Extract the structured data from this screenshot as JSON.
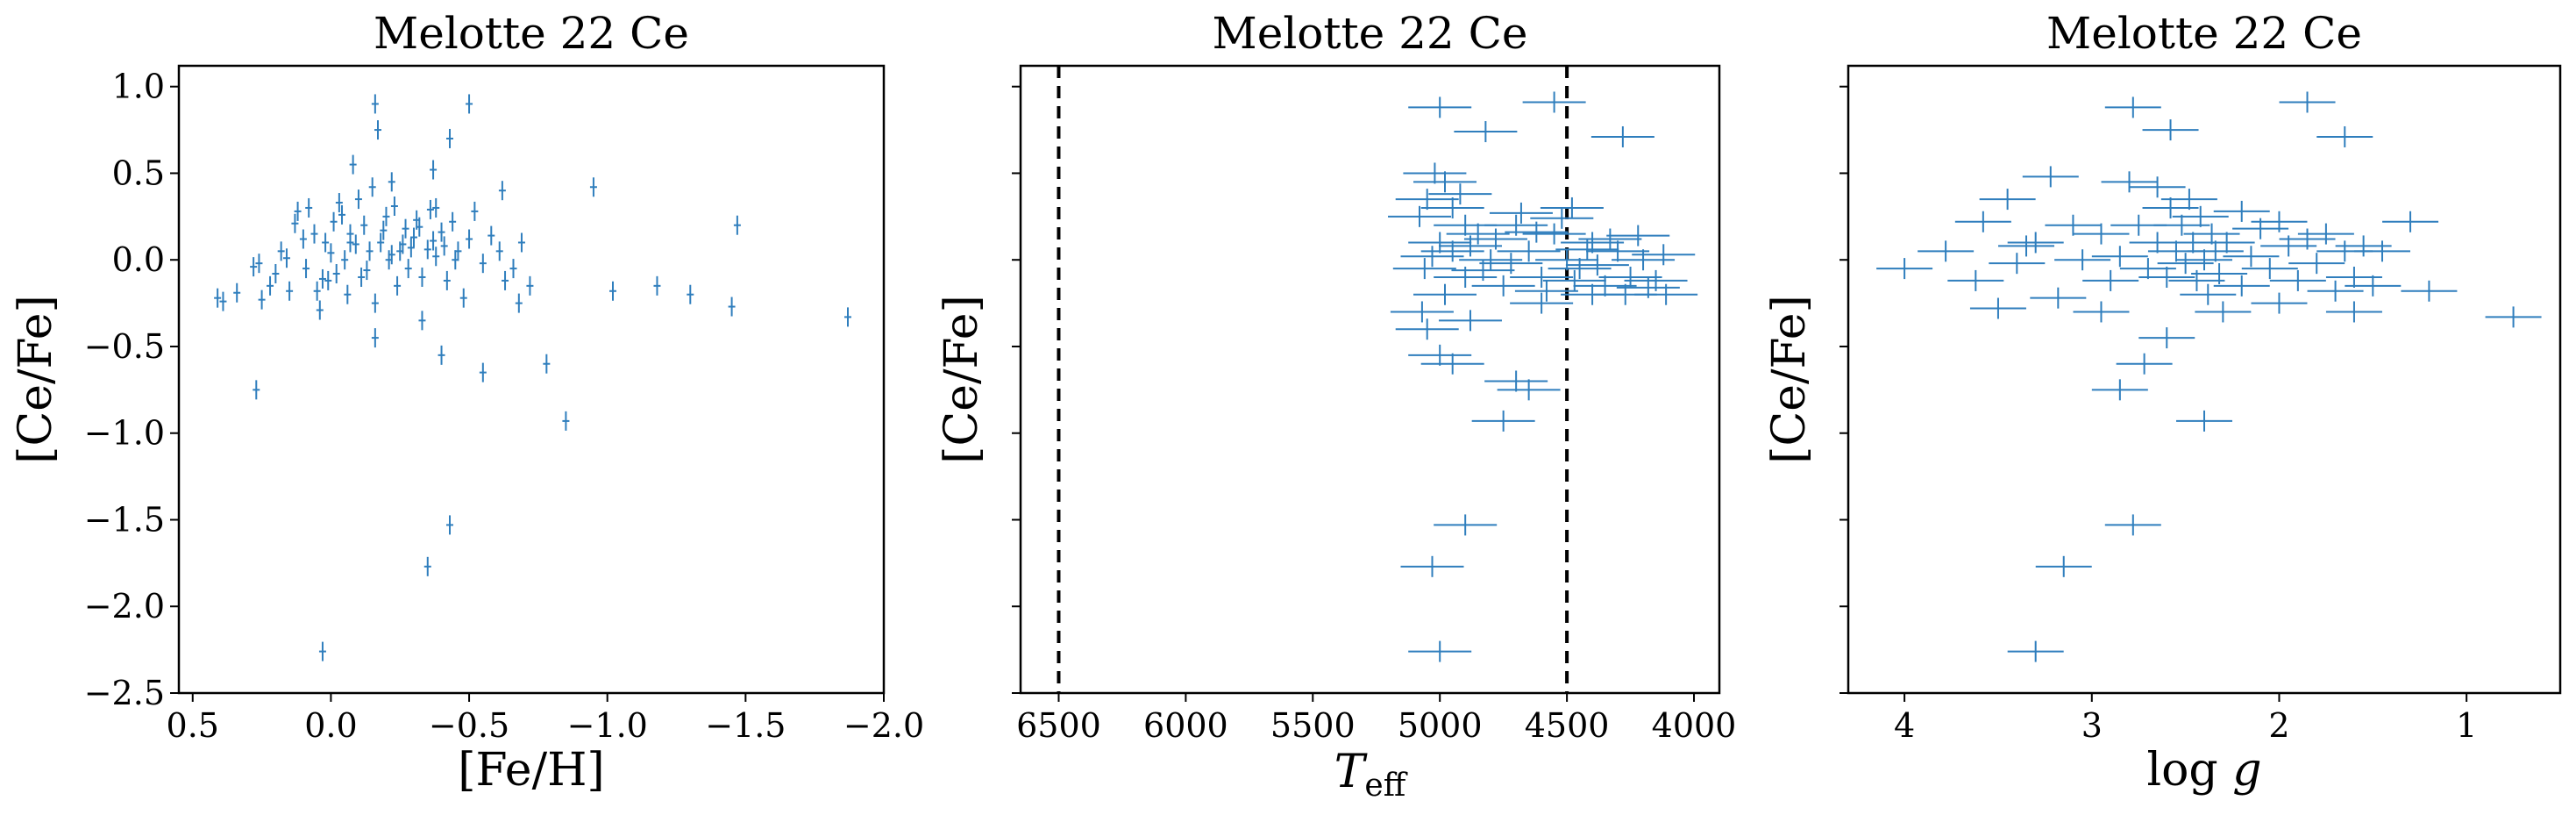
{
  "chart_data": [
    {
      "type": "scatter",
      "title": "Melotte 22 Ce",
      "xlabel": "[Fe/H]",
      "ylabel": "[Ce/Fe]",
      "xlim": [
        0.55,
        -2.0
      ],
      "ylim": [
        -2.5,
        1.12
      ],
      "xticks": [
        0.5,
        0.0,
        -0.5,
        -1.0,
        -1.5,
        -2.0
      ],
      "xtick_labels": [
        "0.5",
        "0.0",
        "−0.5",
        "−1.0",
        "−1.5",
        "−2.0"
      ],
      "yticks": [
        1.0,
        0.5,
        0.0,
        -0.5,
        -1.0,
        -1.5,
        -2.0,
        -2.5
      ],
      "ytick_labels": [
        "1.0",
        "0.5",
        "0.0",
        "−0.5",
        "−1.0",
        "−1.5",
        "−2.0",
        "−2.5"
      ],
      "grid": false,
      "marker": "errorbar",
      "points": [
        [
          0.41,
          -0.22
        ],
        [
          0.39,
          -0.24
        ],
        [
          0.34,
          -0.19
        ],
        [
          0.28,
          -0.04
        ],
        [
          0.26,
          -0.02
        ],
        [
          0.25,
          -0.23
        ],
        [
          0.22,
          -0.15
        ],
        [
          0.2,
          -0.08
        ],
        [
          0.18,
          0.05
        ],
        [
          0.16,
          0.01
        ],
        [
          0.15,
          -0.18
        ],
        [
          0.13,
          0.21
        ],
        [
          0.12,
          0.28
        ],
        [
          0.1,
          0.12
        ],
        [
          0.09,
          -0.05
        ],
        [
          0.08,
          0.3
        ],
        [
          0.06,
          0.15
        ],
        [
          0.05,
          -0.18
        ],
        [
          0.04,
          -0.29
        ],
        [
          0.02,
          0.1
        ],
        [
          0.01,
          -0.12
        ],
        [
          0.0,
          0.04
        ],
        [
          -0.01,
          0.22
        ],
        [
          -0.02,
          -0.08
        ],
        [
          -0.03,
          0.33
        ],
        [
          -0.05,
          0.0
        ],
        [
          -0.06,
          -0.2
        ],
        [
          -0.07,
          0.15
        ],
        [
          -0.09,
          0.09
        ],
        [
          -0.1,
          0.35
        ],
        [
          -0.11,
          -0.1
        ],
        [
          -0.12,
          0.2
        ],
        [
          -0.14,
          0.05
        ],
        [
          -0.15,
          0.42
        ],
        [
          -0.16,
          -0.25
        ],
        [
          -0.18,
          0.1
        ],
        [
          -0.2,
          0.25
        ],
        [
          -0.21,
          0.0
        ],
        [
          -0.23,
          0.31
        ],
        [
          -0.24,
          -0.15
        ],
        [
          -0.25,
          0.05
        ],
        [
          -0.27,
          0.18
        ],
        [
          -0.28,
          -0.05
        ],
        [
          -0.3,
          0.13
        ],
        [
          -0.31,
          0.23
        ],
        [
          -0.33,
          -0.1
        ],
        [
          -0.35,
          0.06
        ],
        [
          -0.36,
          0.29
        ],
        [
          -0.38,
          0.02
        ],
        [
          -0.4,
          0.16
        ],
        [
          -0.42,
          -0.12
        ],
        [
          -0.44,
          0.22
        ],
        [
          -0.46,
          0.05
        ],
        [
          -0.48,
          -0.22
        ],
        [
          -0.5,
          0.12
        ],
        [
          -0.52,
          0.28
        ],
        [
          -0.55,
          -0.02
        ],
        [
          -0.58,
          0.14
        ],
        [
          -0.61,
          0.05
        ],
        [
          -0.63,
          -0.12
        ],
        [
          -0.66,
          -0.05
        ],
        [
          -0.69,
          0.1
        ],
        [
          -0.07,
          0.1
        ],
        [
          -0.13,
          -0.06
        ],
        [
          -0.19,
          0.17
        ],
        [
          -0.26,
          0.09
        ],
        [
          -0.32,
          0.19
        ],
        [
          -0.37,
          0.11
        ],
        [
          -0.41,
          0.08
        ],
        [
          -0.45,
          0.0
        ],
        [
          0.03,
          -0.11
        ],
        [
          -0.04,
          0.26
        ],
        [
          -0.22,
          0.03
        ],
        [
          -0.29,
          0.07
        ],
        [
          -0.16,
          0.9
        ],
        [
          -0.17,
          0.75
        ],
        [
          -0.08,
          0.55
        ],
        [
          -0.22,
          0.45
        ],
        [
          -0.37,
          0.52
        ],
        [
          -0.43,
          0.7
        ],
        [
          -0.5,
          0.9
        ],
        [
          -0.62,
          0.4
        ],
        [
          -0.38,
          0.3
        ],
        [
          -0.16,
          -0.45
        ],
        [
          -0.33,
          -0.35
        ],
        [
          -0.4,
          -0.55
        ],
        [
          -0.55,
          -0.65
        ],
        [
          -0.78,
          -0.6
        ],
        [
          -0.85,
          -0.93
        ],
        [
          -0.95,
          0.42
        ],
        [
          -1.02,
          -0.18
        ],
        [
          -1.18,
          -0.15
        ],
        [
          -1.3,
          -0.2
        ],
        [
          -1.45,
          -0.27
        ],
        [
          -1.47,
          0.2
        ],
        [
          -1.87,
          -0.33
        ],
        [
          0.27,
          -0.75
        ],
        [
          -0.35,
          -1.77
        ],
        [
          -0.43,
          -1.53
        ],
        [
          0.03,
          -2.26
        ],
        [
          -0.72,
          -0.15
        ],
        [
          -0.68,
          -0.25
        ]
      ]
    },
    {
      "type": "scatter",
      "title": "Melotte 22 Ce",
      "xlabel": "T_eff",
      "ylabel": "[Ce/Fe]",
      "xlim": [
        6650,
        3900
      ],
      "ylim": [
        -2.5,
        1.12
      ],
      "xticks": [
        6500,
        6000,
        5500,
        5000,
        4500,
        4000
      ],
      "xtick_labels": [
        "6500",
        "6000",
        "5500",
        "5000",
        "4500",
        "4000"
      ],
      "yticks": [
        1.0,
        0.5,
        0.0,
        -0.5,
        -1.0,
        -1.5,
        -2.0,
        -2.5
      ],
      "ytick_labels": [],
      "vlines": [
        6500,
        4500
      ],
      "grid": false,
      "marker": "errorbar",
      "points": [
        [
          5000,
          0.88
        ],
        [
          4820,
          0.74
        ],
        [
          4550,
          0.91
        ],
        [
          4280,
          0.71
        ],
        [
          5020,
          0.5
        ],
        [
          4980,
          0.45
        ],
        [
          5050,
          0.35
        ],
        [
          4950,
          0.3
        ],
        [
          5080,
          0.25
        ],
        [
          4900,
          0.2
        ],
        [
          4850,
          0.15
        ],
        [
          5000,
          0.1
        ],
        [
          4950,
          0.05
        ],
        [
          4800,
          0.0
        ],
        [
          5060,
          -0.05
        ],
        [
          4900,
          -0.1
        ],
        [
          4750,
          -0.15
        ],
        [
          4700,
          0.2
        ],
        [
          4650,
          0.05
        ],
        [
          4600,
          -0.1
        ],
        [
          4550,
          0.15
        ],
        [
          4500,
          0.0
        ],
        [
          4450,
          -0.05
        ],
        [
          4400,
          0.1
        ],
        [
          4350,
          -0.15
        ],
        [
          4300,
          0.05
        ],
        [
          4250,
          -0.1
        ],
        [
          4200,
          0.0
        ],
        [
          4150,
          -0.12
        ],
        [
          4120,
          0.03
        ],
        [
          5030,
          0.02
        ],
        [
          4980,
          -0.2
        ],
        [
          5070,
          -0.3
        ],
        [
          4920,
          0.38
        ],
        [
          4880,
          0.08
        ],
        [
          4830,
          -0.06
        ],
        [
          4780,
          0.12
        ],
        [
          4720,
          -0.02
        ],
        [
          4680,
          0.27
        ],
        [
          4620,
          0.16
        ],
        [
          4580,
          -0.18
        ],
        [
          4520,
          0.24
        ],
        [
          4470,
          -0.12
        ],
        [
          4420,
          0.06
        ],
        [
          4380,
          -0.03
        ],
        [
          4330,
          0.12
        ],
        [
          4270,
          -0.2
        ],
        [
          4220,
          0.14
        ],
        [
          4180,
          -0.16
        ],
        [
          4110,
          -0.2
        ],
        [
          5050,
          -0.4
        ],
        [
          5000,
          -0.55
        ],
        [
          4950,
          -0.6
        ],
        [
          4880,
          -0.35
        ],
        [
          4700,
          -0.7
        ],
        [
          4650,
          -0.75
        ],
        [
          4750,
          -0.93
        ],
        [
          4900,
          -1.53
        ],
        [
          5030,
          -1.77
        ],
        [
          5000,
          -2.26
        ],
        [
          4600,
          -0.25
        ],
        [
          4480,
          0.3
        ],
        [
          4400,
          -0.2
        ]
      ]
    },
    {
      "type": "scatter",
      "title": "Melotte 22 Ce",
      "xlabel": "log g",
      "ylabel": "[Ce/Fe]",
      "xlim": [
        4.3,
        0.5
      ],
      "ylim": [
        -2.5,
        1.12
      ],
      "xticks": [
        4,
        3,
        2,
        1
      ],
      "xtick_labels": [
        "4",
        "3",
        "2",
        "1"
      ],
      "yticks": [
        1.0,
        0.5,
        0.0,
        -0.5,
        -1.0,
        -1.5,
        -2.0,
        -2.5
      ],
      "ytick_labels": [],
      "grid": false,
      "marker": "errorbar",
      "points": [
        [
          4.0,
          -0.05
        ],
        [
          3.78,
          0.05
        ],
        [
          3.62,
          -0.12
        ],
        [
          3.58,
          0.22
        ],
        [
          3.45,
          0.35
        ],
        [
          3.4,
          -0.02
        ],
        [
          3.35,
          0.08
        ],
        [
          3.22,
          0.48
        ],
        [
          3.18,
          -0.22
        ],
        [
          3.1,
          0.2
        ],
        [
          3.05,
          0.0
        ],
        [
          2.95,
          0.15
        ],
        [
          2.9,
          -0.12
        ],
        [
          2.85,
          0.02
        ],
        [
          2.8,
          0.45
        ],
        [
          2.75,
          0.2
        ],
        [
          2.7,
          -0.05
        ],
        [
          2.65,
          0.1
        ],
        [
          2.6,
          -0.1
        ],
        [
          2.58,
          0.3
        ],
        [
          2.55,
          0.05
        ],
        [
          2.52,
          0.2
        ],
        [
          2.5,
          -0.02
        ],
        [
          2.48,
          0.35
        ],
        [
          2.46,
          0.1
        ],
        [
          2.44,
          -0.12
        ],
        [
          2.42,
          0.25
        ],
        [
          2.4,
          0.0
        ],
        [
          2.38,
          -0.2
        ],
        [
          2.36,
          0.15
        ],
        [
          2.34,
          0.05
        ],
        [
          2.32,
          -0.08
        ],
        [
          2.28,
          0.1
        ],
        [
          2.2,
          -0.15
        ],
        [
          2.15,
          0.02
        ],
        [
          2.1,
          0.18
        ],
        [
          2.05,
          -0.05
        ],
        [
          2.0,
          0.22
        ],
        [
          1.95,
          0.08
        ],
        [
          1.9,
          -0.12
        ],
        [
          1.85,
          0.12
        ],
        [
          1.8,
          -0.02
        ],
        [
          1.75,
          0.15
        ],
        [
          1.7,
          -0.18
        ],
        [
          1.65,
          0.05
        ],
        [
          1.6,
          -0.1
        ],
        [
          1.55,
          0.08
        ],
        [
          1.5,
          -0.15
        ],
        [
          1.3,
          0.22
        ],
        [
          1.2,
          -0.18
        ],
        [
          0.75,
          -0.33
        ],
        [
          2.78,
          0.88
        ],
        [
          2.58,
          0.75
        ],
        [
          1.85,
          0.91
        ],
        [
          1.65,
          0.71
        ],
        [
          3.3,
          -2.26
        ],
        [
          3.15,
          -1.77
        ],
        [
          2.78,
          -1.53
        ],
        [
          2.4,
          -0.93
        ],
        [
          2.85,
          -0.75
        ],
        [
          2.72,
          -0.6
        ],
        [
          2.6,
          -0.45
        ],
        [
          2.3,
          -0.3
        ],
        [
          3.5,
          -0.28
        ],
        [
          2.2,
          0.28
        ],
        [
          1.6,
          -0.3
        ],
        [
          2.95,
          -0.3
        ],
        [
          3.3,
          0.1
        ],
        [
          2.0,
          -0.25
        ],
        [
          2.65,
          0.42
        ],
        [
          1.45,
          0.05
        ]
      ]
    }
  ]
}
